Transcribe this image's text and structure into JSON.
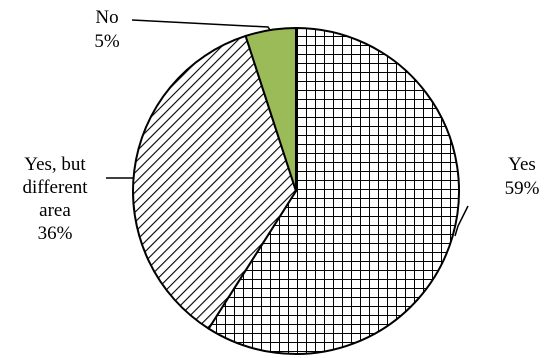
{
  "chart_data": {
    "type": "pie",
    "title": "",
    "slices": [
      {
        "name": "Yes",
        "label_lines": [
          "Yes"
        ],
        "value": 59,
        "value_label": "59%",
        "pattern": "grid",
        "color": "#000000"
      },
      {
        "name": "Yes, but different area",
        "label_lines": [
          "Yes, but",
          "different",
          "area"
        ],
        "value": 36,
        "value_label": "36%",
        "pattern": "diagonal-hatch",
        "color": "#000000"
      },
      {
        "name": "No",
        "label_lines": [
          "No"
        ],
        "value": 5,
        "value_label": "5%",
        "pattern": "solid",
        "color": "#9BBB59"
      }
    ],
    "start": "top",
    "direction": "clockwise",
    "legend": "none",
    "grid": false
  }
}
